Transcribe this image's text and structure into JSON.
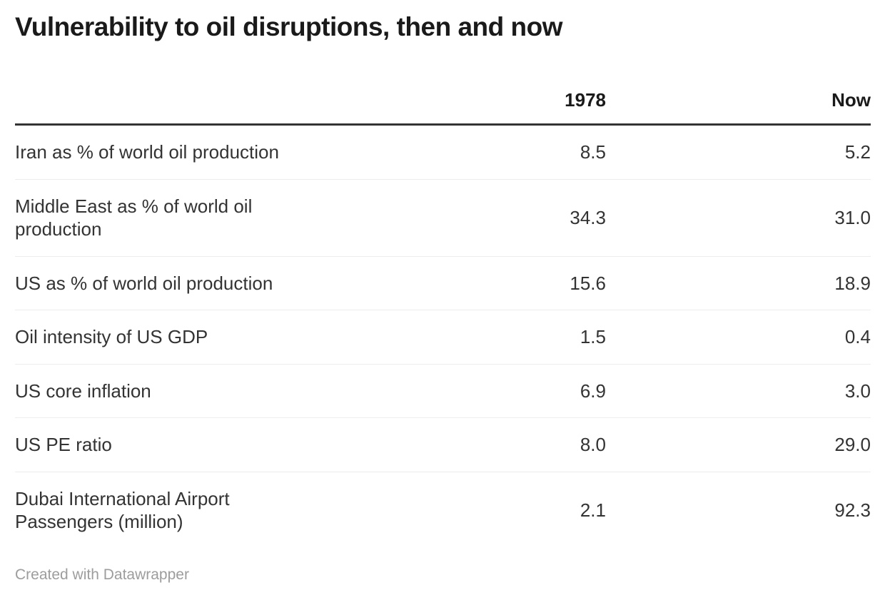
{
  "title": "Vulnerability to oil disruptions, then and now",
  "chart_data": {
    "type": "table",
    "title": "Vulnerability to oil disruptions, then and now",
    "columns": [
      "",
      "1978",
      "Now"
    ],
    "rows": [
      {
        "label": "Iran as % of world oil production",
        "y1978": "8.5",
        "now": "5.2"
      },
      {
        "label": "Middle East as % of world oil production",
        "y1978": "34.3",
        "now": "31.0"
      },
      {
        "label": "US as % of world oil production",
        "y1978": "15.6",
        "now": "18.9"
      },
      {
        "label": "Oil intensity of US GDP",
        "y1978": "1.5",
        "now": "0.4"
      },
      {
        "label": "US core inflation",
        "y1978": "6.9",
        "now": "3.0"
      },
      {
        "label": "US PE ratio",
        "y1978": "8.0",
        "now": "29.0"
      },
      {
        "label": "Dubai International Airport Passengers (million)",
        "y1978": "2.1",
        "now": "92.3"
      }
    ],
    "layout_hints": {
      "value_alignment": "right",
      "header_rule": "thick-dark",
      "row_dividers": "light-gray",
      "last_row_divider": false
    }
  },
  "footer": {
    "credit_prefix": "Created with ",
    "credit_link": "Datawrapper"
  },
  "colors": {
    "title": "#1a1a1a",
    "body_text": "#333333",
    "header_rule": "#333333",
    "row_divider": "#ededed",
    "credit": "#9d9d9d",
    "background": "#ffffff"
  }
}
